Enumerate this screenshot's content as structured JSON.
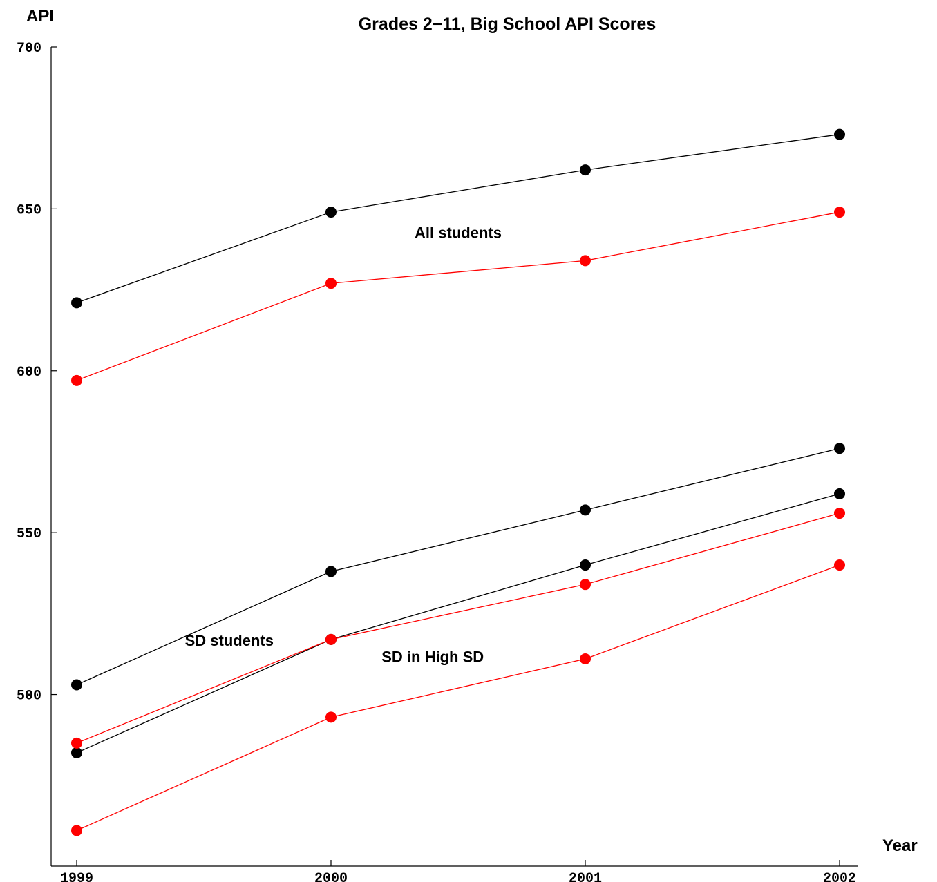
{
  "chart_data": {
    "type": "line",
    "title": "Grades 2−11,  Big School API Scores",
    "xlabel": "Year",
    "ylabel": "API",
    "x": [
      1999,
      2000,
      2001,
      2002
    ],
    "xticks": [
      "1999",
      "2000",
      "2001",
      "2002"
    ],
    "yticks": [
      500,
      550,
      600,
      650,
      700
    ],
    "ylim": [
      447,
      700
    ],
    "grid": false,
    "series": [
      {
        "color": "#000000",
        "values": [
          621,
          649,
          662,
          673
        ]
      },
      {
        "color": "#ff0000",
        "values": [
          597,
          627,
          634,
          649
        ]
      },
      {
        "color": "#000000",
        "values": [
          503,
          538,
          557,
          576
        ]
      },
      {
        "color": "#000000",
        "values": [
          482,
          517,
          540,
          562
        ]
      },
      {
        "color": "#ff0000",
        "values": [
          485,
          517,
          534,
          556
        ]
      },
      {
        "color": "#ff0000",
        "values": [
          458,
          493,
          511,
          540
        ]
      }
    ],
    "annotations": [
      {
        "text": "All students",
        "x": 2000.5,
        "y": 641
      },
      {
        "text": "SD students",
        "x": 1999.6,
        "y": 515
      },
      {
        "text": "SD in High SD",
        "x": 2000.4,
        "y": 510
      }
    ]
  }
}
